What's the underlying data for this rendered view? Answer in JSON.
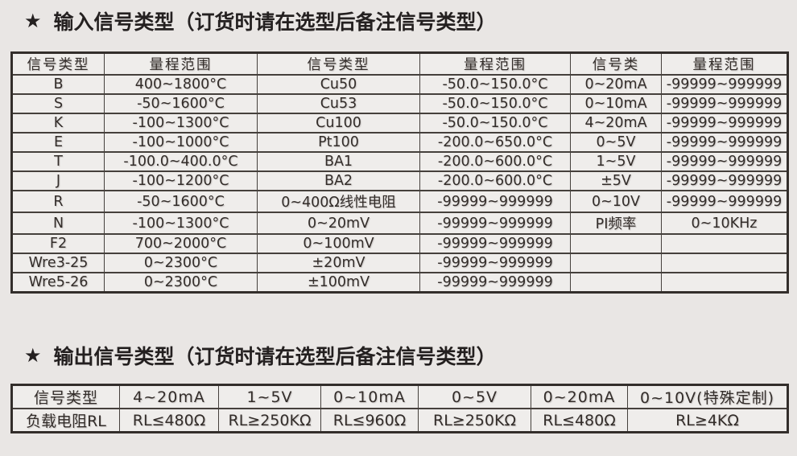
{
  "colors": {
    "page_bg": "#e9e6e4",
    "cell_bg": "#efedeb",
    "border_color": "#45403c",
    "border_outer": "#332e2b",
    "text_color": "#332d2a",
    "title_color": "#242020"
  },
  "input_section": {
    "star": "★",
    "title": "输入信号类型（订货时请在选型后备注信号类型）",
    "table": {
      "headers": [
        "信号类型",
        "量程范围",
        "信号类型",
        "量程范围",
        "信号类",
        "量程范围"
      ],
      "rows": [
        [
          "B",
          "400~1800°C",
          "Cu50",
          "-50.0~150.0°C",
          "0~20mA",
          "-99999~999999"
        ],
        [
          "S",
          "-50~1600°C",
          "Cu53",
          "-50.0~150.0°C",
          "0~10mA",
          "-99999~999999"
        ],
        [
          "K",
          "-100~1300°C",
          "Cu100",
          "-50.0~150.0°C",
          "4~20mA",
          "-99999~999999"
        ],
        [
          "E",
          "-100~1000°C",
          "Pt100",
          "-200.0~650.0°C",
          "0~5V",
          "-99999~999999"
        ],
        [
          "T",
          "-100.0~400.0°C",
          "BA1",
          "-200.0~600.0°C",
          "1~5V",
          "-99999~999999"
        ],
        [
          "J",
          "-100~1200°C",
          "BA2",
          "-200.0~600.0°C",
          "±5V",
          "-99999~999999"
        ],
        [
          "R",
          "-50~1600°C",
          "0~400Ω线性电阻",
          "-99999~999999",
          "0~10V",
          "-99999~999999"
        ],
        [
          "N",
          "-100~1300°C",
          "0~20mV",
          "-99999~999999",
          "PI频率",
          "0~10KHz"
        ],
        [
          "F2",
          "700~2000°C",
          "0~100mV",
          "-99999~999999",
          "",
          ""
        ],
        [
          "Wre3-25",
          "0~2300°C",
          "±20mV",
          "-99999~999999",
          "",
          ""
        ],
        [
          "Wre5-26",
          "0~2300°C",
          "±100mV",
          "-99999~999999",
          "",
          ""
        ]
      ]
    }
  },
  "output_section": {
    "star": "★",
    "title": "输出信号类型（订货时请在选型后备注信号类型）",
    "table": {
      "headers": [
        "信号类型",
        "4~20mA",
        "1~5V",
        "0~10mA",
        "0~5V",
        "0~20mA",
        "0~10V(特殊定制)"
      ],
      "rows": [
        [
          "负载电阻RL",
          "RL≤480Ω",
          "RL≥250KΩ",
          "RL≤960Ω",
          "RL≥250KΩ",
          "RL≤480Ω",
          "RL≥4KΩ"
        ]
      ]
    }
  }
}
